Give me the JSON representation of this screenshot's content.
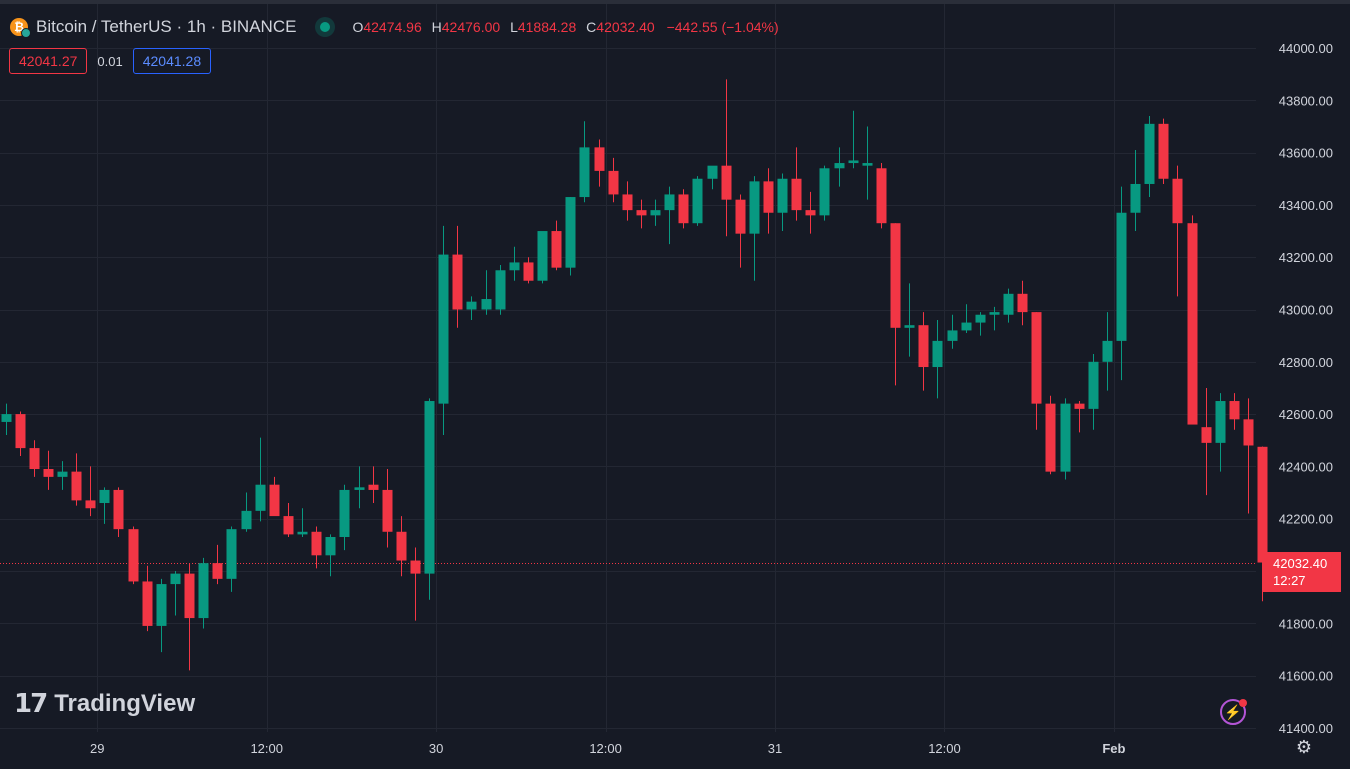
{
  "symbol": {
    "title": "Bitcoin / TetherUS · 1h · BINANCE",
    "icon": "bitcoin-icon",
    "status_color": "#089981"
  },
  "ohlc": {
    "o_label": "O",
    "o": "42474.96",
    "h_label": "H",
    "h": "42476.00",
    "l_label": "L",
    "l": "41884.28",
    "c_label": "C",
    "c": "42032.40",
    "change": "−442.55 (−1.04%)"
  },
  "quotes": {
    "sell": "42041.27",
    "spread": "0.01",
    "buy": "42041.28"
  },
  "last_price": {
    "price": "42032.40",
    "countdown": "12:27"
  },
  "branding": {
    "logo_mark": "17",
    "name": "TradingView"
  },
  "colors": {
    "up": "#089981",
    "down": "#f23645",
    "background": "#161a25",
    "grid": "#232733"
  },
  "chart_data": {
    "type": "candlestick",
    "y_axis": {
      "side": "right",
      "ticks": [
        "44000.00",
        "43800.00",
        "43600.00",
        "43400.00",
        "43200.00",
        "43000.00",
        "42800.00",
        "42600.00",
        "42400.00",
        "42200.00",
        "42000.00",
        "41800.00",
        "41600.00",
        "41400.00"
      ],
      "tick_values": [
        44000,
        43800,
        43600,
        43400,
        43200,
        43000,
        42800,
        42600,
        42400,
        42200,
        42000,
        41800,
        41600,
        41400
      ],
      "range": [
        41400,
        44000
      ]
    },
    "x_axis": {
      "labels": [
        {
          "label": "29",
          "index": 6.5
        },
        {
          "label": "12:00",
          "index": 18.5
        },
        {
          "label": "30",
          "index": 30.5
        },
        {
          "label": "12:00",
          "index": 42.5
        },
        {
          "label": "31",
          "index": 54.5
        },
        {
          "label": "12:00",
          "index": 66.5
        },
        {
          "label": "Feb",
          "index": 78.5
        }
      ]
    },
    "last_price": 42032.4,
    "candles": [
      {
        "o": 42570,
        "h": 42640,
        "l": 42520,
        "c": 42600
      },
      {
        "o": 42600,
        "h": 42610,
        "l": 42440,
        "c": 42470
      },
      {
        "o": 42470,
        "h": 42500,
        "l": 42360,
        "c": 42390
      },
      {
        "o": 42390,
        "h": 42460,
        "l": 42310,
        "c": 42360
      },
      {
        "o": 42360,
        "h": 42420,
        "l": 42310,
        "c": 42380
      },
      {
        "o": 42380,
        "h": 42450,
        "l": 42250,
        "c": 42270
      },
      {
        "o": 42270,
        "h": 42400,
        "l": 42210,
        "c": 42240
      },
      {
        "o": 42260,
        "h": 42320,
        "l": 42180,
        "c": 42310
      },
      {
        "o": 42310,
        "h": 42320,
        "l": 42130,
        "c": 42160
      },
      {
        "o": 42160,
        "h": 42170,
        "l": 41950,
        "c": 41960
      },
      {
        "o": 41960,
        "h": 42020,
        "l": 41770,
        "c": 41790
      },
      {
        "o": 41790,
        "h": 41970,
        "l": 41690,
        "c": 41950
      },
      {
        "o": 41950,
        "h": 42000,
        "l": 41830,
        "c": 41990
      },
      {
        "o": 41990,
        "h": 42030,
        "l": 41620,
        "c": 41820
      },
      {
        "o": 41820,
        "h": 42050,
        "l": 41780,
        "c": 42030
      },
      {
        "o": 42030,
        "h": 42100,
        "l": 41950,
        "c": 41970
      },
      {
        "o": 41970,
        "h": 42170,
        "l": 41920,
        "c": 42160
      },
      {
        "o": 42160,
        "h": 42300,
        "l": 42150,
        "c": 42230
      },
      {
        "o": 42230,
        "h": 42510,
        "l": 42190,
        "c": 42330
      },
      {
        "o": 42330,
        "h": 42360,
        "l": 42230,
        "c": 42210
      },
      {
        "o": 42210,
        "h": 42260,
        "l": 42130,
        "c": 42140
      },
      {
        "o": 42140,
        "h": 42240,
        "l": 42130,
        "c": 42150
      },
      {
        "o": 42150,
        "h": 42170,
        "l": 42010,
        "c": 42060
      },
      {
        "o": 42060,
        "h": 42140,
        "l": 41980,
        "c": 42130
      },
      {
        "o": 42130,
        "h": 42330,
        "l": 42080,
        "c": 42310
      },
      {
        "o": 42310,
        "h": 42400,
        "l": 42240,
        "c": 42320
      },
      {
        "o": 42330,
        "h": 42400,
        "l": 42260,
        "c": 42310
      },
      {
        "o": 42310,
        "h": 42390,
        "l": 42090,
        "c": 42150
      },
      {
        "o": 42150,
        "h": 42210,
        "l": 41980,
        "c": 42040
      },
      {
        "o": 42040,
        "h": 42090,
        "l": 41810,
        "c": 41990
      },
      {
        "o": 41990,
        "h": 42660,
        "l": 41890,
        "c": 42650
      },
      {
        "o": 42640,
        "h": 43320,
        "l": 42520,
        "c": 43210
      },
      {
        "o": 43210,
        "h": 43320,
        "l": 42930,
        "c": 43000
      },
      {
        "o": 43000,
        "h": 43050,
        "l": 42960,
        "c": 43030
      },
      {
        "o": 43000,
        "h": 43150,
        "l": 42980,
        "c": 43040
      },
      {
        "o": 43000,
        "h": 43170,
        "l": 42980,
        "c": 43150
      },
      {
        "o": 43150,
        "h": 43240,
        "l": 43110,
        "c": 43180
      },
      {
        "o": 43180,
        "h": 43200,
        "l": 43100,
        "c": 43110
      },
      {
        "o": 43110,
        "h": 43290,
        "l": 43100,
        "c": 43300
      },
      {
        "o": 43300,
        "h": 43340,
        "l": 43150,
        "c": 43160
      },
      {
        "o": 43160,
        "h": 43430,
        "l": 43130,
        "c": 43430
      },
      {
        "o": 43430,
        "h": 43720,
        "l": 43410,
        "c": 43620
      },
      {
        "o": 43620,
        "h": 43650,
        "l": 43470,
        "c": 43530
      },
      {
        "o": 43530,
        "h": 43580,
        "l": 43410,
        "c": 43440
      },
      {
        "o": 43440,
        "h": 43490,
        "l": 43340,
        "c": 43380
      },
      {
        "o": 43380,
        "h": 43420,
        "l": 43310,
        "c": 43360
      },
      {
        "o": 43360,
        "h": 43420,
        "l": 43320,
        "c": 43380
      },
      {
        "o": 43380,
        "h": 43470,
        "l": 43250,
        "c": 43440
      },
      {
        "o": 43440,
        "h": 43460,
        "l": 43310,
        "c": 43330
      },
      {
        "o": 43330,
        "h": 43510,
        "l": 43320,
        "c": 43500
      },
      {
        "o": 43500,
        "h": 43540,
        "l": 43460,
        "c": 43550
      },
      {
        "o": 43550,
        "h": 43880,
        "l": 43280,
        "c": 43420
      },
      {
        "o": 43420,
        "h": 43440,
        "l": 43160,
        "c": 43290
      },
      {
        "o": 43290,
        "h": 43510,
        "l": 43110,
        "c": 43490
      },
      {
        "o": 43490,
        "h": 43540,
        "l": 43290,
        "c": 43370
      },
      {
        "o": 43370,
        "h": 43520,
        "l": 43300,
        "c": 43500
      },
      {
        "o": 43500,
        "h": 43620,
        "l": 43340,
        "c": 43380
      },
      {
        "o": 43380,
        "h": 43450,
        "l": 43290,
        "c": 43360
      },
      {
        "o": 43360,
        "h": 43550,
        "l": 43340,
        "c": 43540
      },
      {
        "o": 43540,
        "h": 43620,
        "l": 43470,
        "c": 43560
      },
      {
        "o": 43560,
        "h": 43760,
        "l": 43540,
        "c": 43570
      },
      {
        "o": 43550,
        "h": 43700,
        "l": 43420,
        "c": 43560
      },
      {
        "o": 43540,
        "h": 43560,
        "l": 43310,
        "c": 43330
      },
      {
        "o": 43330,
        "h": 43330,
        "l": 42710,
        "c": 42930
      },
      {
        "o": 42930,
        "h": 43100,
        "l": 42820,
        "c": 42940
      },
      {
        "o": 42940,
        "h": 42990,
        "l": 42690,
        "c": 42780
      },
      {
        "o": 42780,
        "h": 42960,
        "l": 42660,
        "c": 42880
      },
      {
        "o": 42880,
        "h": 42980,
        "l": 42850,
        "c": 42920
      },
      {
        "o": 42920,
        "h": 43020,
        "l": 42910,
        "c": 42950
      },
      {
        "o": 42950,
        "h": 42990,
        "l": 42900,
        "c": 42980
      },
      {
        "o": 42980,
        "h": 43010,
        "l": 42920,
        "c": 42990
      },
      {
        "o": 42980,
        "h": 43080,
        "l": 42950,
        "c": 43060
      },
      {
        "o": 43060,
        "h": 43110,
        "l": 42940,
        "c": 42990
      },
      {
        "o": 42990,
        "h": 42990,
        "l": 42540,
        "c": 42640
      },
      {
        "o": 42640,
        "h": 42670,
        "l": 42370,
        "c": 42380
      },
      {
        "o": 42380,
        "h": 42660,
        "l": 42350,
        "c": 42640
      },
      {
        "o": 42640,
        "h": 42650,
        "l": 42530,
        "c": 42620
      },
      {
        "o": 42620,
        "h": 42830,
        "l": 42540,
        "c": 42800
      },
      {
        "o": 42800,
        "h": 42990,
        "l": 42690,
        "c": 42880
      },
      {
        "o": 42880,
        "h": 43470,
        "l": 42730,
        "c": 43370
      },
      {
        "o": 43370,
        "h": 43610,
        "l": 43300,
        "c": 43480
      },
      {
        "o": 43480,
        "h": 43740,
        "l": 43430,
        "c": 43710
      },
      {
        "o": 43710,
        "h": 43730,
        "l": 43480,
        "c": 43500
      },
      {
        "o": 43500,
        "h": 43550,
        "l": 43050,
        "c": 43330
      },
      {
        "o": 43330,
        "h": 43360,
        "l": 42560,
        "c": 42560
      },
      {
        "o": 42550,
        "h": 42700,
        "l": 42290,
        "c": 42490
      },
      {
        "o": 42490,
        "h": 42680,
        "l": 42380,
        "c": 42650
      },
      {
        "o": 42650,
        "h": 42680,
        "l": 42540,
        "c": 42580
      },
      {
        "o": 42580,
        "h": 42660,
        "l": 42220,
        "c": 42480
      },
      {
        "o": 42474.96,
        "h": 42476,
        "l": 41884.28,
        "c": 42032.4
      }
    ]
  }
}
